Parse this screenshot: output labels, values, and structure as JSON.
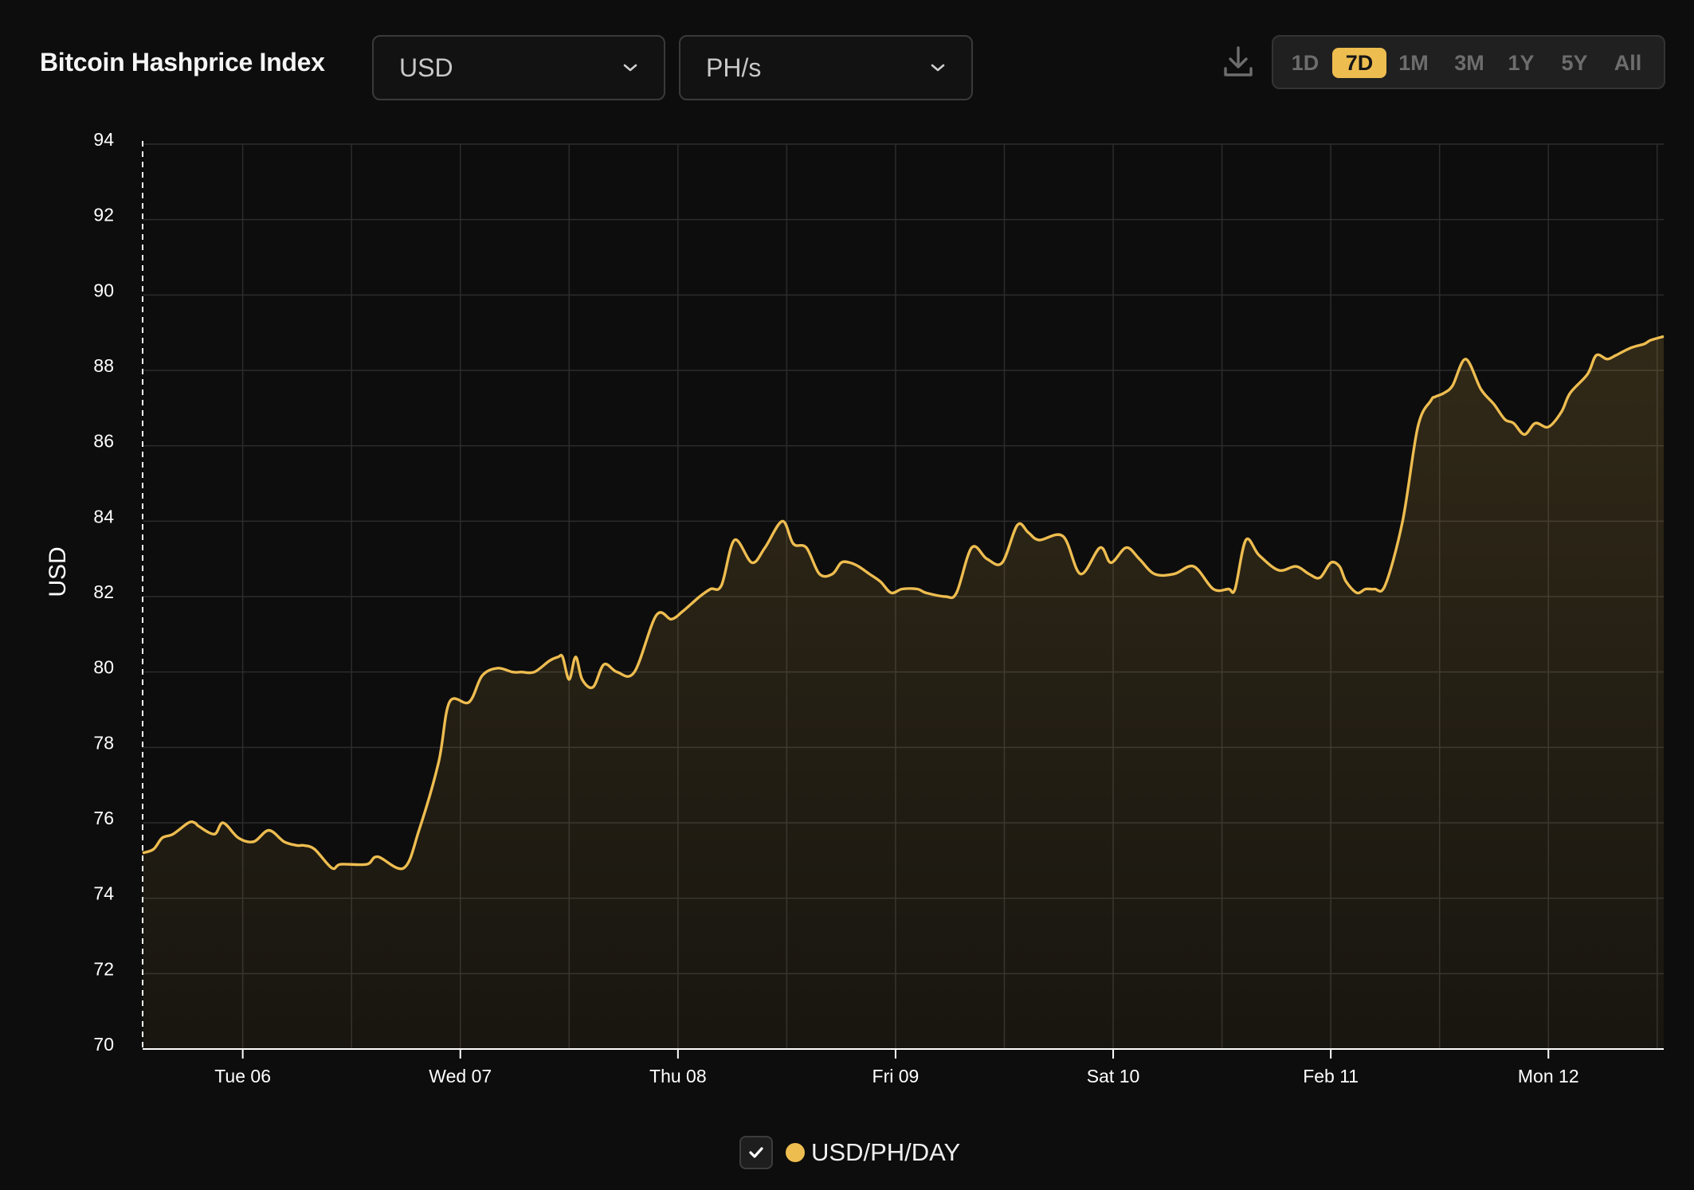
{
  "header": {
    "title": "Bitcoin Hashprice Index",
    "currency_select": {
      "value": "USD"
    },
    "unit_select": {
      "value": "PH/s"
    },
    "ranges": [
      "1D",
      "7D",
      "1M",
      "3M",
      "1Y",
      "5Y",
      "All"
    ],
    "active_range": "7D"
  },
  "colors": {
    "accent": "#eebd50",
    "background": "#0d0d0d",
    "grid": "#2c2c2c"
  },
  "icons": {
    "download": "download-icon",
    "chevron": "chevron-down-icon",
    "check": "check-icon"
  },
  "legend": {
    "label": "USD/PH/DAY",
    "checked": true
  },
  "chart_data": {
    "type": "area",
    "ylabel": "USD",
    "ylim": [
      70,
      94
    ],
    "yticks": [
      94,
      92,
      90,
      88,
      86,
      84,
      82,
      80,
      78,
      76,
      74,
      72,
      70
    ],
    "xlim": [
      -0.46,
      6.53
    ],
    "xticks": [
      {
        "pos": 0,
        "label": "Tue 06"
      },
      {
        "pos": 1,
        "label": "Wed 07"
      },
      {
        "pos": 2,
        "label": "Thu 08"
      },
      {
        "pos": 3,
        "label": "Fri 09"
      },
      {
        "pos": 4,
        "label": "Sat 10"
      },
      {
        "pos": 5,
        "label": "Feb 11"
      },
      {
        "pos": 6,
        "label": "Mon 12"
      }
    ],
    "grid": true,
    "series": [
      {
        "name": "USD/PH/DAY",
        "x": [
          -0.46,
          -0.41,
          -0.37,
          -0.32,
          -0.25,
          -0.22,
          -0.2,
          -0.13,
          -0.09,
          -0.02,
          0.05,
          0.12,
          0.19,
          0.25,
          0.28,
          0.33,
          0.41,
          0.45,
          0.57,
          0.62,
          0.74,
          0.81,
          0.9,
          0.95,
          1.04,
          1.1,
          1.17,
          1.24,
          1.28,
          1.34,
          1.41,
          1.45,
          1.47,
          1.5,
          1.53,
          1.56,
          1.61,
          1.66,
          1.72,
          1.8,
          1.9,
          1.97,
          2.02,
          2.06,
          2.1,
          2.15,
          2.2,
          2.26,
          2.34,
          2.4,
          2.48,
          2.53,
          2.59,
          2.65,
          2.71,
          2.75,
          2.79,
          2.83,
          2.88,
          2.93,
          2.98,
          3.03,
          3.1,
          3.14,
          3.23,
          3.28,
          3.35,
          3.42,
          3.49,
          3.56,
          3.61,
          3.66,
          3.77,
          3.85,
          3.94,
          3.99,
          4.06,
          4.12,
          4.19,
          4.28,
          4.37,
          4.46,
          4.53,
          4.56,
          4.61,
          4.67,
          4.76,
          4.84,
          4.9,
          4.95,
          5.0,
          5.04,
          5.07,
          5.12,
          5.16,
          5.2,
          5.25,
          5.33,
          5.4,
          5.46,
          5.48,
          5.52,
          5.56,
          5.62,
          5.69,
          5.75,
          5.8,
          5.84,
          5.89,
          5.94,
          6.0,
          6.06,
          6.1,
          6.18,
          6.22,
          6.27,
          6.31,
          6.38,
          6.44,
          6.47,
          6.53
        ],
        "values": [
          75.2,
          75.3,
          75.6,
          75.7,
          76.0,
          76.0,
          75.9,
          75.7,
          76.0,
          75.6,
          75.5,
          75.8,
          75.5,
          75.4,
          75.4,
          75.3,
          74.8,
          74.9,
          74.9,
          75.1,
          74.8,
          75.8,
          77.6,
          79.2,
          79.2,
          79.9,
          80.1,
          80.0,
          80.0,
          80.0,
          80.3,
          80.4,
          80.4,
          79.8,
          80.4,
          79.8,
          79.6,
          80.2,
          80.0,
          80.0,
          81.5,
          81.4,
          81.6,
          81.8,
          82.0,
          82.2,
          82.3,
          83.5,
          82.9,
          83.3,
          84.0,
          83.4,
          83.3,
          82.6,
          82.6,
          82.9,
          82.9,
          82.8,
          82.6,
          82.4,
          82.1,
          82.2,
          82.2,
          82.1,
          82.0,
          82.1,
          83.3,
          83.0,
          82.9,
          83.9,
          83.7,
          83.5,
          83.6,
          82.6,
          83.3,
          82.9,
          83.3,
          83.0,
          82.6,
          82.6,
          82.8,
          82.2,
          82.2,
          82.2,
          83.5,
          83.1,
          82.7,
          82.8,
          82.6,
          82.5,
          82.9,
          82.8,
          82.4,
          82.1,
          82.2,
          82.2,
          82.3,
          84.0,
          86.5,
          87.2,
          87.3,
          87.4,
          87.6,
          88.3,
          87.5,
          87.1,
          86.7,
          86.6,
          86.3,
          86.6,
          86.5,
          86.9,
          87.4,
          87.9,
          88.4,
          88.3,
          88.4,
          88.6,
          88.7,
          88.8,
          88.9
        ]
      }
    ]
  }
}
